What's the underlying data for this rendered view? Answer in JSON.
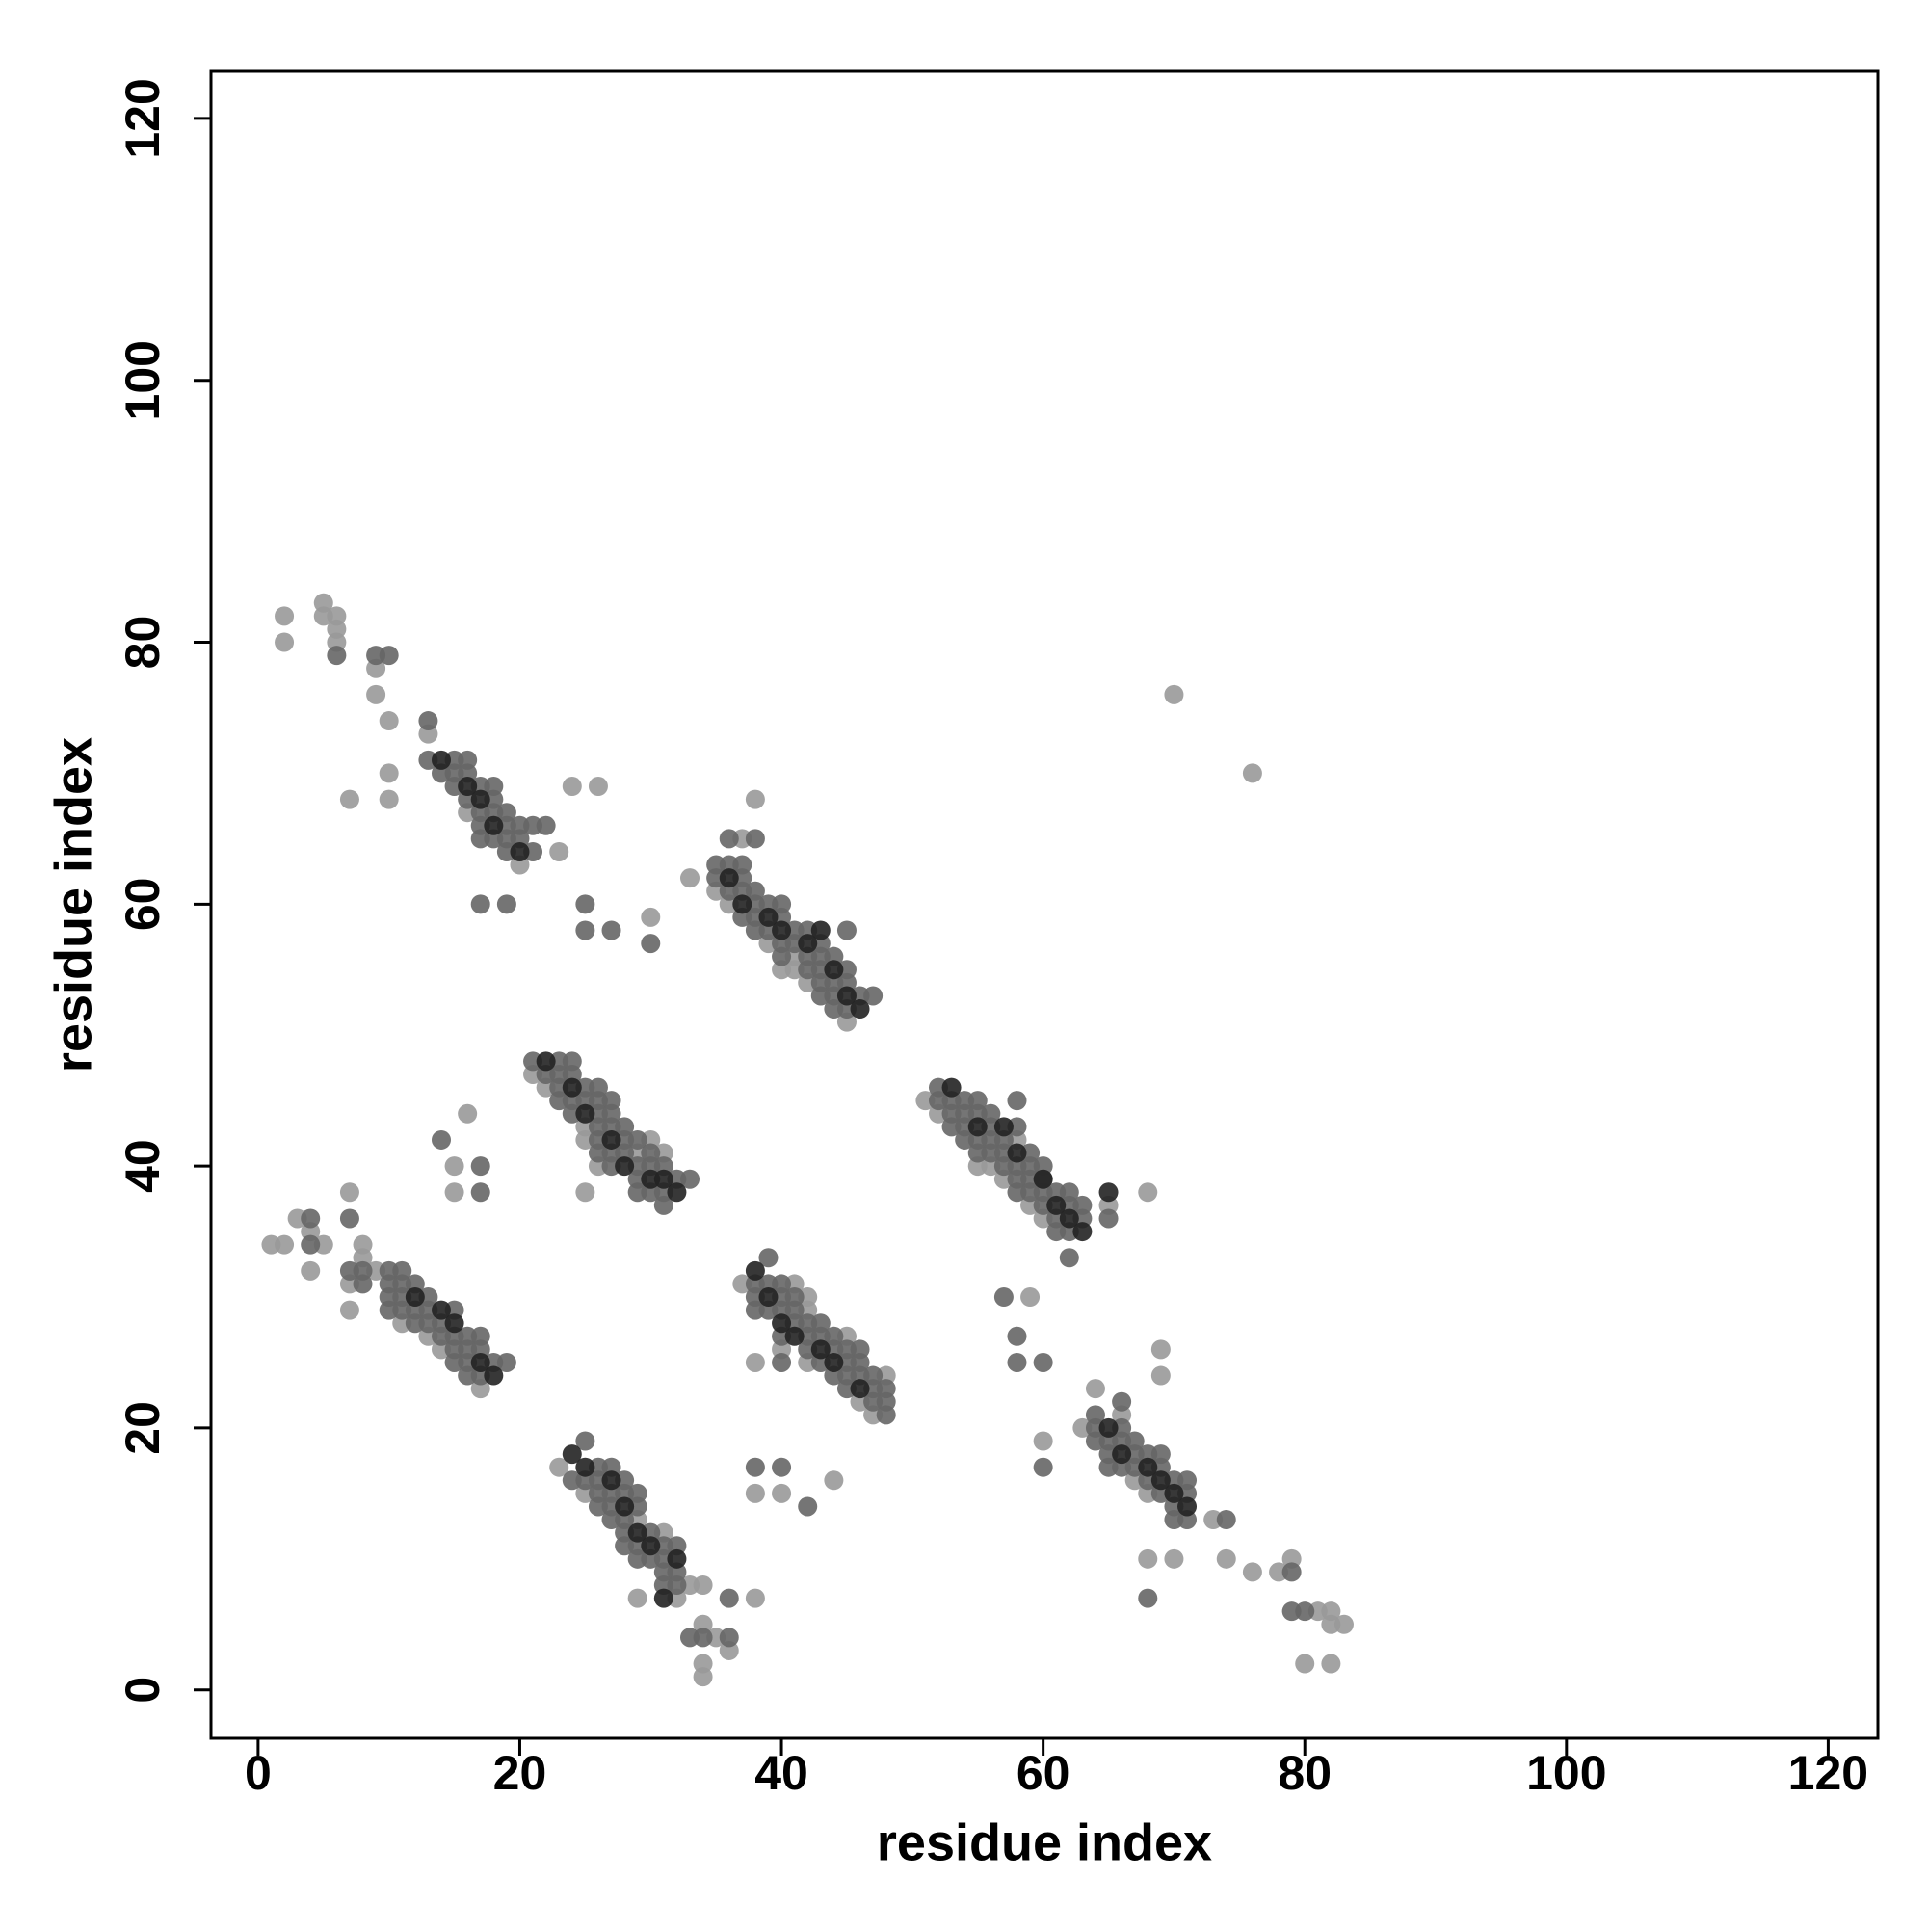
{
  "chart_data": {
    "type": "scatter",
    "xlabel": "residue index",
    "ylabel": "residue index",
    "xlim": [
      -3.6,
      123.8
    ],
    "ylim": [
      -3.7,
      123.6
    ],
    "xticks": [
      0,
      20,
      40,
      60,
      80,
      100,
      120
    ],
    "yticks": [
      0,
      20,
      40,
      60,
      80,
      100,
      120
    ],
    "grid": false,
    "series": [
      {
        "color": "#999999",
        "x": [
          2,
          2,
          5,
          5,
          6,
          6,
          6,
          9,
          9,
          10,
          13,
          10,
          7,
          10,
          24,
          26,
          30,
          16,
          20,
          23,
          33,
          37,
          38,
          35,
          36,
          41,
          40,
          41,
          42,
          45,
          39,
          21,
          22,
          25,
          25,
          26,
          25,
          29,
          15,
          15,
          16,
          30,
          31,
          1,
          2,
          3,
          4,
          5,
          4,
          7,
          8,
          8,
          7,
          7,
          9,
          11,
          13,
          14,
          17,
          37,
          41,
          42,
          42,
          38,
          40,
          42,
          45,
          38,
          40,
          44,
          47,
          46,
          48,
          23,
          25,
          29,
          31,
          33,
          34,
          29,
          35,
          34,
          36,
          34,
          34,
          38,
          32,
          51,
          52,
          55,
          56,
          57,
          59,
          60,
          65,
          68,
          58,
          63,
          64,
          66,
          67,
          68,
          68,
          70,
          74,
          76,
          78,
          79,
          81,
          82,
          82,
          83,
          80,
          82,
          69,
          69,
          73,
          59,
          60,
          70,
          76
        ],
        "values": [
          82,
          80,
          83,
          82,
          82,
          81,
          80,
          78,
          76,
          74,
          73,
          70,
          68,
          68,
          69,
          69,
          59,
          67,
          63,
          64,
          62,
          65,
          68,
          61,
          60,
          56,
          55,
          55,
          54,
          51,
          57,
          47,
          46,
          43,
          42,
          40,
          38,
          41,
          40,
          38,
          44,
          42,
          41,
          34,
          34,
          36,
          35,
          34,
          32,
          38,
          34,
          33,
          31,
          29,
          32,
          28,
          27,
          26,
          23,
          31,
          31,
          30,
          29,
          25,
          26,
          25,
          27,
          15,
          15,
          16,
          21,
          22,
          24,
          17,
          15,
          13,
          12,
          8,
          8,
          7,
          4,
          5,
          3,
          2,
          1,
          7,
          7,
          45,
          44,
          40,
          40,
          39,
          37,
          36,
          37,
          38,
          42,
          20,
          23,
          21,
          16,
          15,
          10,
          10,
          10,
          9,
          9,
          10,
          6,
          6,
          5,
          5,
          2,
          2,
          26,
          24,
          13,
          30,
          19,
          76,
          70
        ]
      },
      {
        "color": "#666666",
        "x": [
          6,
          9,
          10,
          13,
          13,
          15,
          16,
          14,
          15,
          16,
          15,
          17,
          18,
          16,
          18,
          17,
          18,
          19,
          17,
          19,
          20,
          21,
          22,
          17,
          18,
          19,
          20,
          19,
          21,
          17,
          19,
          25,
          25,
          27,
          30,
          35,
          36,
          37,
          35,
          37,
          36,
          37,
          38,
          38,
          39,
          40,
          37,
          38,
          40,
          38,
          39,
          41,
          42,
          45,
          40,
          41,
          43,
          40,
          42,
          43,
          44,
          42,
          43,
          45,
          43,
          44,
          45,
          43,
          44,
          46,
          47,
          44,
          45,
          36,
          38,
          23,
          24,
          21,
          22,
          23,
          24,
          23,
          25,
          26,
          23,
          24,
          25,
          26,
          27,
          24,
          26,
          27,
          26,
          27,
          28,
          26,
          28,
          29,
          26,
          27,
          28,
          30,
          27,
          29,
          30,
          31,
          29,
          32,
          33,
          29,
          30,
          31,
          31,
          14,
          17,
          17,
          4,
          4,
          7,
          7,
          8,
          8,
          10,
          11,
          10,
          11,
          12,
          10,
          11,
          13,
          10,
          11,
          12,
          13,
          15,
          12,
          13,
          14,
          14,
          15,
          16,
          17,
          15,
          16,
          17,
          15,
          16,
          18,
          19,
          16,
          17,
          39,
          38,
          39,
          40,
          38,
          40,
          41,
          38,
          39,
          40,
          41,
          41,
          42,
          43,
          40,
          42,
          43,
          44,
          42,
          44,
          45,
          46,
          43,
          45,
          46,
          44,
          45,
          46,
          47,
          45,
          47,
          48,
          47,
          48,
          48,
          40,
          38,
          40,
          42,
          25,
          25,
          26,
          27,
          24,
          26,
          28,
          26,
          27,
          28,
          29,
          26,
          27,
          29,
          27,
          28,
          28,
          30,
          28,
          29,
          31,
          32,
          29,
          30,
          31,
          31,
          32,
          31,
          32,
          36,
          33,
          34,
          36,
          52,
          52,
          53,
          54,
          55,
          53,
          54,
          55,
          56,
          53,
          54,
          56,
          58,
          54,
          55,
          56,
          57,
          55,
          56,
          57,
          59,
          57,
          58,
          59,
          60,
          58,
          59,
          60,
          58,
          59,
          60,
          61,
          62,
          60,
          62,
          63,
          61,
          63,
          61,
          62,
          62,
          58,
          65,
          64,
          64,
          66,
          66,
          64,
          65,
          66,
          67,
          65,
          67,
          68,
          69,
          65,
          66,
          67,
          69,
          68,
          70,
          71,
          69,
          71,
          70,
          70,
          71,
          74,
          68,
          79,
          79,
          80,
          57,
          58,
          58,
          60,
          60
        ],
        "values": [
          79,
          79,
          79,
          74,
          71,
          71,
          71,
          70,
          70,
          70,
          69,
          69,
          69,
          68,
          68,
          67,
          67,
          67,
          66,
          66,
          66,
          66,
          66,
          65,
          65,
          65,
          65,
          64,
          64,
          60,
          60,
          60,
          58,
          58,
          57,
          63,
          63,
          63,
          62,
          62,
          61,
          61,
          61,
          60,
          60,
          60,
          59,
          59,
          59,
          58,
          58,
          58,
          58,
          58,
          57,
          57,
          57,
          56,
          56,
          56,
          56,
          55,
          55,
          55,
          54,
          54,
          54,
          53,
          53,
          53,
          53,
          52,
          52,
          65,
          65,
          48,
          48,
          48,
          47,
          47,
          47,
          46,
          46,
          46,
          45,
          45,
          45,
          45,
          45,
          44,
          44,
          44,
          43,
          43,
          43,
          42,
          42,
          42,
          41,
          41,
          41,
          41,
          40,
          40,
          40,
          40,
          39,
          39,
          39,
          38,
          38,
          38,
          37,
          42,
          40,
          38,
          36,
          34,
          36,
          32,
          32,
          31,
          32,
          32,
          31,
          31,
          31,
          30,
          30,
          30,
          29,
          29,
          29,
          29,
          29,
          28,
          28,
          28,
          27,
          27,
          27,
          27,
          26,
          26,
          26,
          25,
          25,
          25,
          25,
          24,
          24,
          33,
          31,
          31,
          31,
          30,
          30,
          30,
          29,
          29,
          29,
          29,
          28,
          28,
          28,
          27,
          27,
          27,
          27,
          26,
          26,
          26,
          26,
          25,
          25,
          25,
          24,
          24,
          24,
          24,
          23,
          23,
          23,
          22,
          22,
          21,
          25,
          17,
          17,
          14,
          19,
          16,
          17,
          17,
          16,
          16,
          16,
          15,
          15,
          15,
          15,
          14,
          14,
          14,
          13,
          13,
          12,
          12,
          11,
          11,
          11,
          11,
          10,
          10,
          10,
          9,
          9,
          8,
          8,
          7,
          4,
          4,
          4,
          46,
          45,
          45,
          45,
          45,
          44,
          44,
          44,
          44,
          43,
          43,
          43,
          43,
          42,
          42,
          42,
          42,
          41,
          41,
          41,
          41,
          40,
          40,
          40,
          40,
          39,
          39,
          39,
          38,
          38,
          38,
          38,
          38,
          37,
          37,
          37,
          36,
          36,
          35,
          35,
          33,
          45,
          36,
          21,
          20,
          20,
          22,
          19,
          19,
          19,
          19,
          18,
          18,
          18,
          18,
          17,
          17,
          17,
          17,
          16,
          16,
          16,
          15,
          15,
          14,
          13,
          13,
          13,
          7,
          9,
          6,
          6,
          30,
          27,
          25,
          25,
          17
        ]
      },
      {
        "color": "#222222",
        "x": [
          14,
          16,
          17,
          18,
          20,
          36,
          37,
          39,
          40,
          42,
          43,
          44,
          45,
          46,
          22,
          24,
          25,
          27,
          28,
          30,
          31,
          32,
          12,
          14,
          15,
          17,
          18,
          38,
          39,
          40,
          41,
          43,
          44,
          46,
          24,
          25,
          27,
          28,
          29,
          30,
          32,
          31,
          53,
          55,
          57,
          58,
          60,
          61,
          62,
          63,
          65,
          66,
          68,
          69,
          70,
          71,
          65
        ],
        "values": [
          71,
          69,
          68,
          66,
          64,
          62,
          60,
          59,
          58,
          57,
          58,
          55,
          53,
          52,
          48,
          46,
          44,
          42,
          40,
          39,
          39,
          38,
          30,
          29,
          28,
          25,
          24,
          32,
          30,
          28,
          27,
          26,
          25,
          23,
          18,
          17,
          16,
          14,
          12,
          11,
          10,
          7,
          46,
          43,
          43,
          41,
          39,
          37,
          36,
          35,
          20,
          18,
          17,
          16,
          15,
          14,
          38
        ]
      }
    ]
  }
}
